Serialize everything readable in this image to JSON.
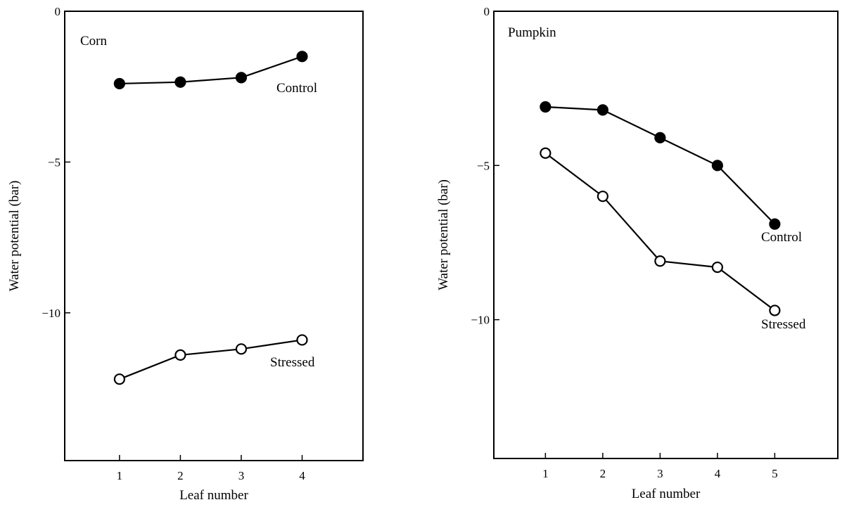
{
  "chart_data": [
    {
      "type": "line",
      "title": "Corn",
      "xlabel": "Leaf number",
      "ylabel": "Water potential (bar)",
      "xlim": [
        0.1,
        5.0
      ],
      "ylim": [
        -14.9,
        0
      ],
      "x_ticks": [
        1,
        2,
        3,
        4
      ],
      "x_tick_labels": [
        "1",
        "2",
        "3",
        "4"
      ],
      "y_ticks": [
        0,
        -5,
        -10
      ],
      "y_tick_labels": [
        "0",
        "−5",
        "−10"
      ],
      "grid": false,
      "series": [
        {
          "name": "Control",
          "marker": "filled-circle",
          "color": "#000000",
          "x": [
            1,
            2,
            3,
            4
          ],
          "y": [
            -2.4,
            -2.35,
            -2.2,
            -1.5
          ]
        },
        {
          "name": "Stressed",
          "marker": "open-circle",
          "color": "#000000",
          "x": [
            1,
            2,
            3,
            4
          ],
          "y": [
            -12.2,
            -11.4,
            -11.2,
            -10.9
          ]
        }
      ]
    },
    {
      "type": "line",
      "title": "Pumpkin",
      "xlabel": "Leaf number",
      "ylabel": "Water potential (bar)",
      "xlim": [
        0.1,
        6.1
      ],
      "ylim": [
        -14.5,
        0
      ],
      "x_ticks": [
        1,
        2,
        3,
        4,
        5
      ],
      "x_tick_labels": [
        "1",
        "2",
        "3",
        "4",
        "5"
      ],
      "y_ticks": [
        0,
        -5,
        -10
      ],
      "y_tick_labels": [
        "0",
        "−5",
        "−10"
      ],
      "grid": false,
      "series": [
        {
          "name": "Control",
          "marker": "filled-circle",
          "color": "#000000",
          "x": [
            1,
            2,
            3,
            4,
            5
          ],
          "y": [
            -3.1,
            -3.2,
            -4.1,
            -5.0,
            -6.9
          ]
        },
        {
          "name": "Stressed",
          "marker": "open-circle",
          "color": "#000000",
          "x": [
            1,
            2,
            3,
            4,
            5
          ],
          "y": [
            -4.6,
            -6.0,
            -8.1,
            -8.3,
            -9.7
          ]
        }
      ]
    }
  ]
}
